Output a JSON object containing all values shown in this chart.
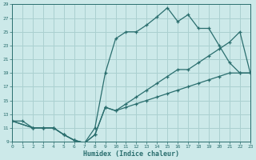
{
  "xlabel": "Humidex (Indice chaleur)",
  "bg_color": "#cce9e9",
  "grid_color": "#aad0d0",
  "line_color": "#2a6e6e",
  "xlim": [
    0,
    23
  ],
  "ylim": [
    9,
    29
  ],
  "xticks": [
    0,
    1,
    2,
    3,
    4,
    5,
    6,
    7,
    8,
    9,
    10,
    11,
    12,
    13,
    14,
    15,
    16,
    17,
    18,
    19,
    20,
    21,
    22,
    23
  ],
  "yticks": [
    9,
    11,
    13,
    15,
    17,
    19,
    21,
    23,
    25,
    27,
    29
  ],
  "line1_x": [
    0,
    1,
    2,
    3,
    4,
    5,
    6,
    7,
    8,
    9,
    10,
    11,
    12,
    13,
    14,
    15,
    16,
    17,
    18,
    19,
    20,
    21,
    22,
    23
  ],
  "line1_y": [
    12,
    12,
    11,
    11,
    11,
    10,
    9.2,
    8.8,
    11,
    19,
    24,
    25,
    25,
    26,
    27.2,
    28.5,
    26.5,
    27.5,
    25.5,
    25.5,
    23,
    20.5,
    19,
    19
  ],
  "line2_x": [
    0,
    2,
    3,
    4,
    5,
    6,
    7,
    8,
    9,
    10,
    11,
    12,
    13,
    14,
    15,
    16,
    17,
    18,
    19,
    20,
    21,
    22,
    23
  ],
  "line2_y": [
    12,
    11,
    11,
    11,
    10,
    9.2,
    8.8,
    10,
    14,
    13.5,
    14.5,
    15.5,
    16.5,
    17.5,
    18.5,
    19.5,
    19.5,
    20.5,
    21.5,
    22.5,
    23.5,
    25,
    19
  ],
  "line3_x": [
    0,
    2,
    3,
    4,
    5,
    6,
    7,
    8,
    9,
    10,
    11,
    12,
    13,
    14,
    15,
    16,
    17,
    18,
    19,
    20,
    21,
    22,
    23
  ],
  "line3_y": [
    12,
    11,
    11,
    11,
    10,
    9.2,
    8.8,
    10,
    14,
    13.5,
    14,
    14.5,
    15,
    15.5,
    16,
    16.5,
    17,
    17.5,
    18,
    18.5,
    19,
    19,
    19
  ]
}
